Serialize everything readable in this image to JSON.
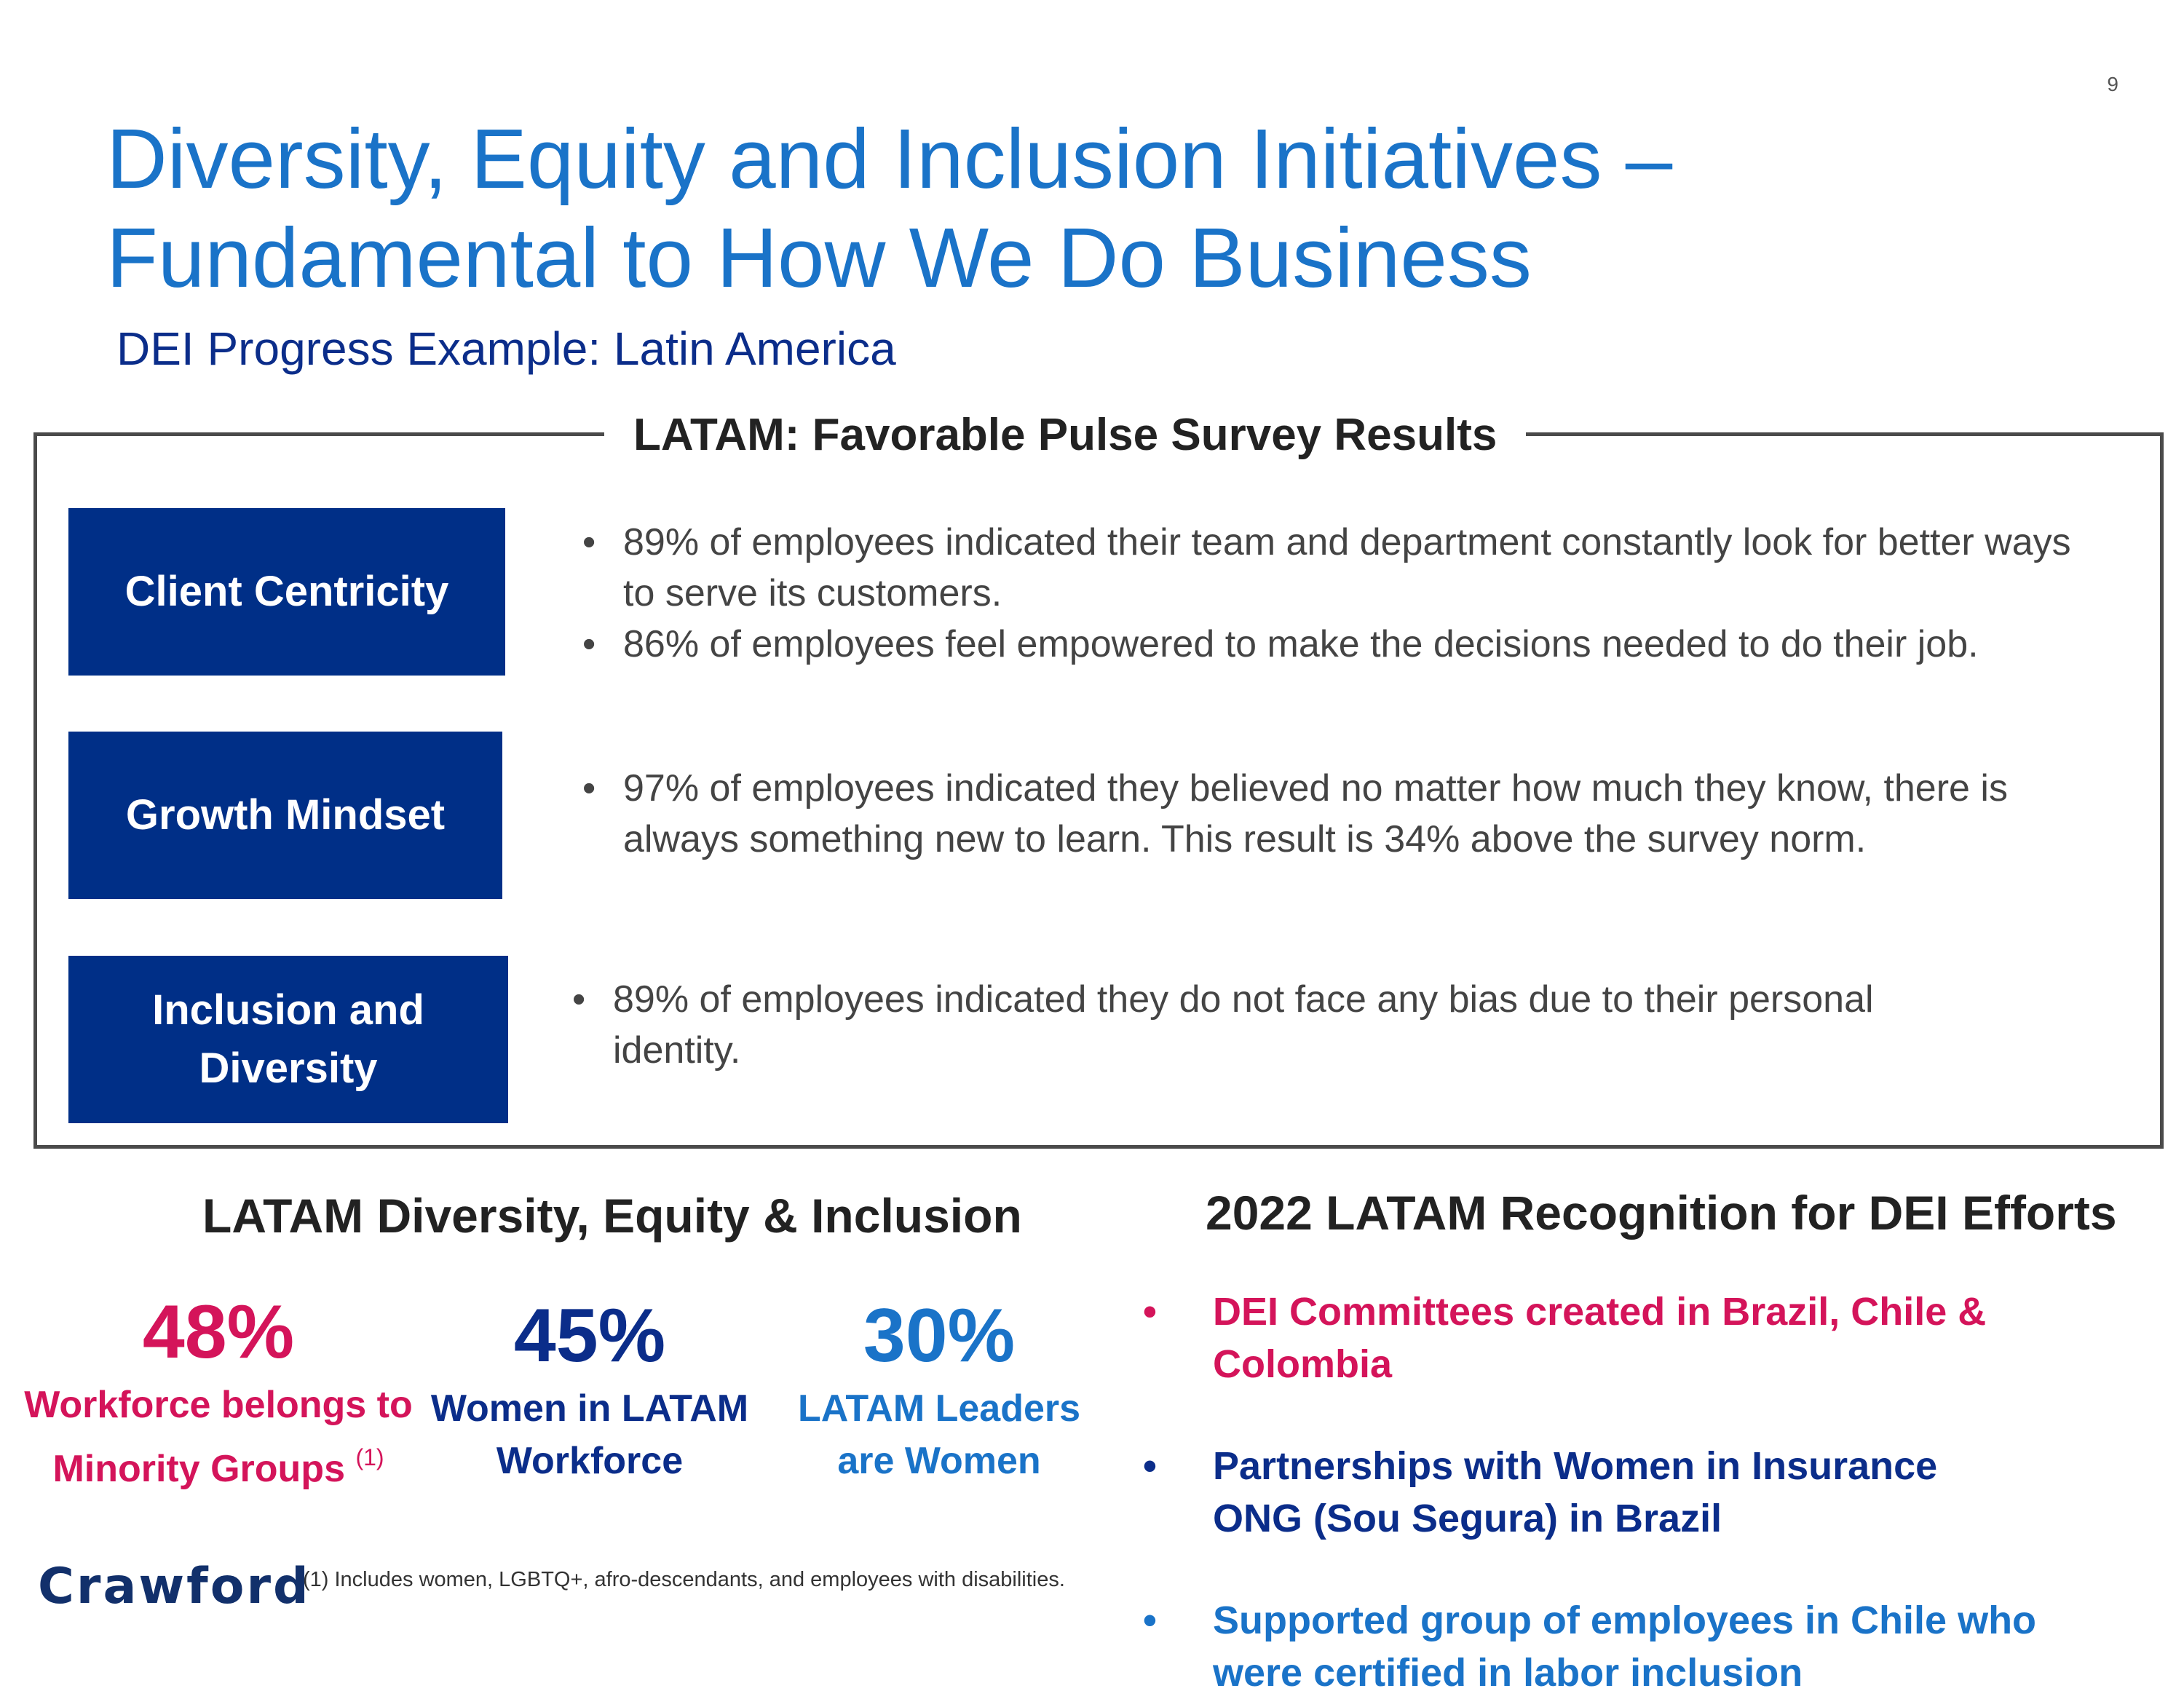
{
  "page_number": "9",
  "title": {
    "line1": "Diversity, Equity and Inclusion Initiatives –",
    "line2": "Fundamental to How We Do Business"
  },
  "subtitle": "DEI Progress Example: Latin America",
  "survey": {
    "heading": "LATAM: Favorable Pulse Survey Results",
    "categories": [
      {
        "label": "Client Centricity",
        "bullets": [
          "89% of employees indicated their team and department constantly look for better ways to serve its customers.",
          "86% of employees feel empowered to make the decisions needed to do their job."
        ]
      },
      {
        "label": "Growth Mindset",
        "bullets": [
          "97% of employees indicated they believed no matter how much they know, there is always something new to learn. This result is 34% above the survey norm."
        ]
      },
      {
        "label_line1": "Inclusion and",
        "label_line2": "Diversity",
        "bullets": [
          "89% of employees indicated they do not face any bias due to their personal identity."
        ]
      }
    ]
  },
  "dei": {
    "heading": "LATAM Diversity, Equity & Inclusion",
    "stats": [
      {
        "value": "48%",
        "label_line1": "Workforce belongs to",
        "label_line2": "Minority Groups",
        "note": "(1)",
        "color": "#d4145a"
      },
      {
        "value": "45%",
        "label_line1": "Women in LATAM",
        "label_line2": "Workforce",
        "color": "#0b2d8a"
      },
      {
        "value": "30%",
        "label_line1": "LATAM Leaders",
        "label_line2": "are Women",
        "color": "#1a73c8"
      }
    ]
  },
  "recognition": {
    "heading": "2022 LATAM Recognition for DEI Efforts",
    "items": [
      {
        "text": "DEI Committees created in Brazil, Chile & Colombia",
        "color": "#d4145a"
      },
      {
        "text": "Partnerships with Women in Insurance ONG (Sou Segura) in Brazil",
        "color": "#0b2d8a"
      },
      {
        "text": "Supported group of employees in Chile who were certified in labor inclusion",
        "color": "#1a73c8"
      }
    ]
  },
  "logo": "Crawford",
  "footnote": "(1) Includes women, LGBTQ+, afro-descendants, and employees with disabilities."
}
